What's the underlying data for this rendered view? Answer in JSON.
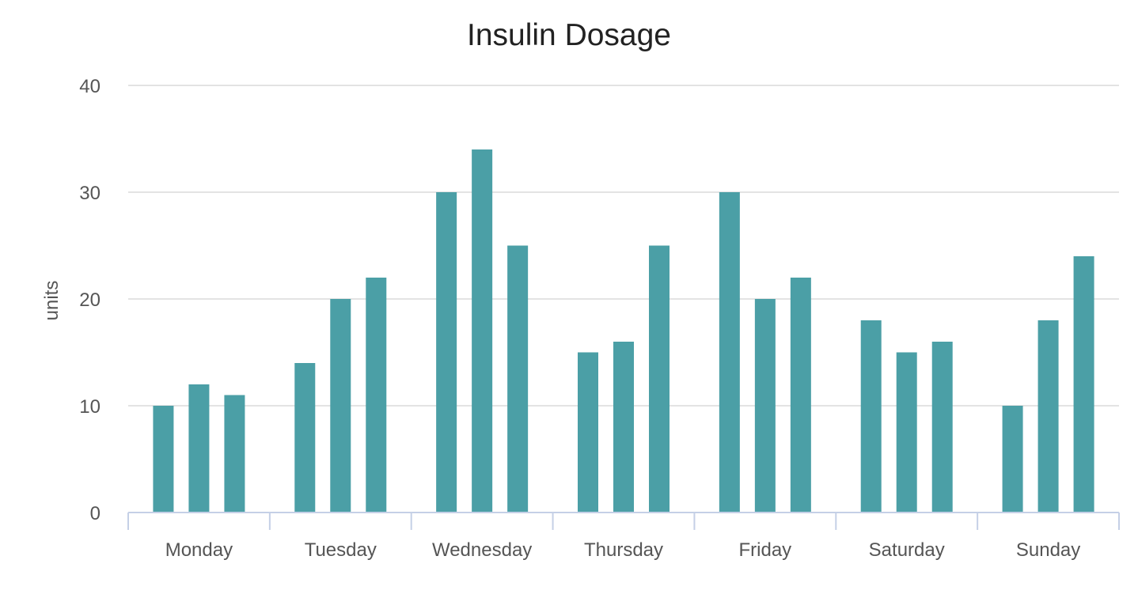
{
  "chart_data": {
    "type": "bar",
    "title": "Insulin Dosage",
    "xlabel": "",
    "ylabel": "units",
    "categories": [
      "Monday",
      "Tuesday",
      "Wednesday",
      "Thursday",
      "Friday",
      "Saturday",
      "Sunday"
    ],
    "series": [
      {
        "values": [
          10,
          14,
          30,
          15,
          30,
          18,
          10
        ]
      },
      {
        "values": [
          12,
          20,
          34,
          16,
          20,
          15,
          18
        ]
      },
      {
        "values": [
          11,
          22,
          25,
          25,
          22,
          16,
          24
        ]
      }
    ],
    "ylim": [
      0,
      40
    ],
    "yticks": [
      "0",
      "10",
      "20",
      "30",
      "40"
    ],
    "grid": true,
    "colors": {
      "bar": "#4b9fa6",
      "grid": "#e3e3e3",
      "axis": "#c5d0e6"
    }
  }
}
